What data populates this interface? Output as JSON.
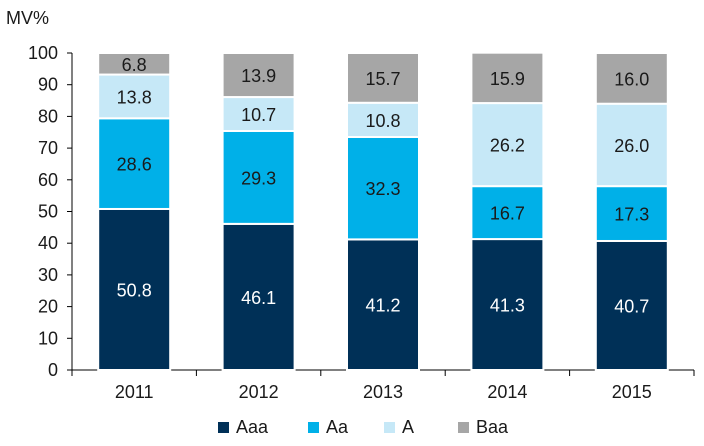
{
  "chart_data": {
    "type": "bar",
    "stacked": true,
    "ylabel": "MV%",
    "ylim": [
      0,
      100
    ],
    "yticks": [
      0,
      10,
      20,
      30,
      40,
      50,
      60,
      70,
      80,
      90,
      100
    ],
    "categories": [
      "2011",
      "2012",
      "2013",
      "2014",
      "2015"
    ],
    "series": [
      {
        "name": "Aaa",
        "color": "#003057",
        "label_color": "#ffffff",
        "values": [
          50.8,
          46.1,
          41.2,
          41.3,
          40.7
        ]
      },
      {
        "name": "Aa",
        "color": "#00b0e8",
        "label_color": "#1a1a1a",
        "values": [
          28.6,
          29.3,
          32.3,
          16.7,
          17.3
        ]
      },
      {
        "name": "A",
        "color": "#c6e8f7",
        "label_color": "#1a1a1a",
        "values": [
          13.8,
          10.7,
          10.8,
          26.2,
          26.0
        ]
      },
      {
        "name": "Baa",
        "color": "#a6a6a6",
        "label_color": "#1a1a1a",
        "values": [
          6.8,
          13.9,
          15.7,
          15.9,
          16.0
        ]
      }
    ],
    "grid": false,
    "legend_position": "bottom"
  }
}
